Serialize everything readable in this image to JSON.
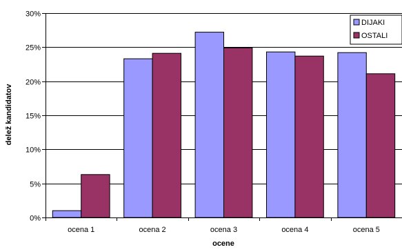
{
  "chart_data": {
    "type": "bar",
    "categories": [
      "ocena 1",
      "ocena 2",
      "ocena 3",
      "ocena 4",
      "ocena 5"
    ],
    "series": [
      {
        "name": "DIJAKI",
        "color": "#9999ff",
        "values": [
          1.0,
          23.3,
          27.2,
          24.3,
          24.2
        ]
      },
      {
        "name": "OSTALI",
        "color": "#993366",
        "values": [
          6.3,
          24.1,
          24.9,
          23.7,
          21.1
        ]
      }
    ],
    "yticks": [
      "0%",
      "5%",
      "10%",
      "15%",
      "20%",
      "25%",
      "30%"
    ],
    "ylim": [
      0,
      30
    ],
    "xlabel": "ocene",
    "ylabel": "delež kandidatov",
    "grid": true,
    "legend": "top-right"
  }
}
